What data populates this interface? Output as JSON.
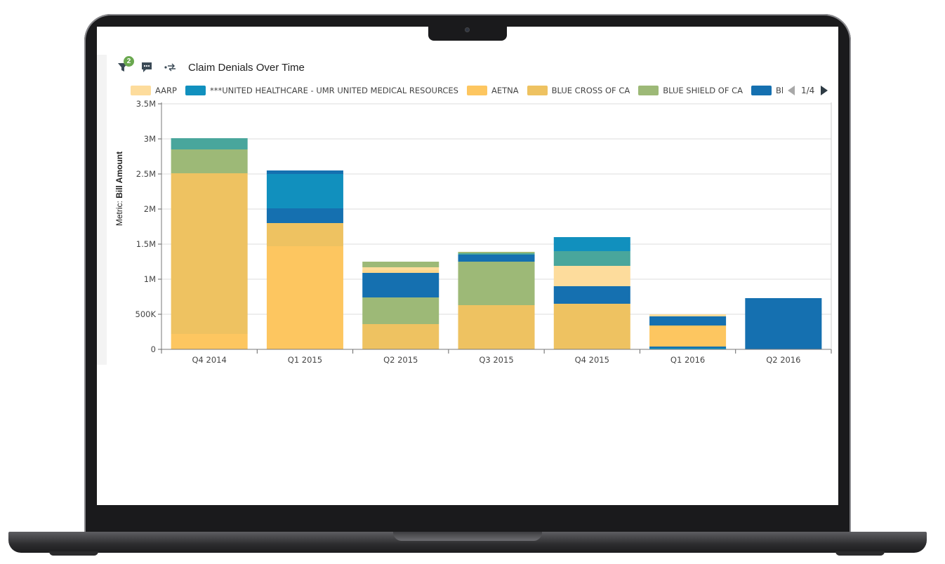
{
  "colors": {
    "aarp": "#fddc9c",
    "united_healthcare": "#1190be",
    "aetna": "#fdc660",
    "blue_cross": "#eec261",
    "blue_shield": "#9db977",
    "series6": "#1570b0",
    "teal": "#49a69c"
  },
  "toolbar": {
    "filter_count": "2",
    "icons": [
      "filter-icon",
      "comment-icon",
      "swap-icon"
    ]
  },
  "legend": {
    "items": [
      {
        "label": "AARP",
        "color": "#fddc9c"
      },
      {
        "label": "***UNITED HEALTHCARE - UMR UNITED MEDICAL RESOURCES",
        "color": "#1190be"
      },
      {
        "label": "AETNA",
        "color": "#fdc660"
      },
      {
        "label": "BLUE CROSS OF CA",
        "color": "#eec261"
      },
      {
        "label": "BLUE SHIELD OF CA",
        "color": "#9db977"
      },
      {
        "label": "Bl",
        "color": "#1570b0"
      }
    ],
    "page": "1/4"
  },
  "chart_data": {
    "type": "bar",
    "stacked": true,
    "title": "Claim Denials Over Time",
    "ylabel_prefix": "Metric:",
    "ylabel": "Bill Amount",
    "xlabel": "",
    "ylim": [
      0,
      3500000
    ],
    "y_ticks": [
      {
        "value": 0,
        "label": "0"
      },
      {
        "value": 500000,
        "label": "500K"
      },
      {
        "value": 1000000,
        "label": "1M"
      },
      {
        "value": 1500000,
        "label": "1.5M"
      },
      {
        "value": 2000000,
        "label": "2M"
      },
      {
        "value": 2500000,
        "label": "2.5M"
      },
      {
        "value": 3000000,
        "label": "3M"
      },
      {
        "value": 3500000,
        "label": "3.5M"
      }
    ],
    "grid": true,
    "legend_position": "top",
    "categories": [
      "Q4 2014",
      "Q1 2015",
      "Q2 2015",
      "Q3 2015",
      "Q4 2015",
      "Q1 2016",
      "Q2 2016"
    ],
    "stacks": [
      [
        {
          "color": "#fdc660",
          "value": 220000
        },
        {
          "color": "#eec261",
          "value": 2290000
        },
        {
          "color": "#9db977",
          "value": 340000
        },
        {
          "color": "#49a69c",
          "value": 160000
        }
      ],
      [
        {
          "color": "#fdc660",
          "value": 1470000
        },
        {
          "color": "#eec261",
          "value": 330000
        },
        {
          "color": "#1570b0",
          "value": 210000
        },
        {
          "color": "#1190be",
          "value": 490000
        },
        {
          "color": "#1570b0",
          "value": 50000
        }
      ],
      [
        {
          "color": "#eec261",
          "value": 360000
        },
        {
          "color": "#9db977",
          "value": 380000
        },
        {
          "color": "#1570b0",
          "value": 350000
        },
        {
          "color": "#fdd68a",
          "value": 40000
        },
        {
          "color": "#fddc9c",
          "value": 40000
        },
        {
          "color": "#9db977",
          "value": 80000
        }
      ],
      [
        {
          "color": "#eec261",
          "value": 630000
        },
        {
          "color": "#9db977",
          "value": 620000
        },
        {
          "color": "#1570b0",
          "value": 100000
        },
        {
          "color": "#49a69c",
          "value": 20000
        },
        {
          "color": "#9db977",
          "value": 20000
        }
      ],
      [
        {
          "color": "#eec261",
          "value": 650000
        },
        {
          "color": "#1570b0",
          "value": 250000
        },
        {
          "color": "#fddc9c",
          "value": 290000
        },
        {
          "color": "#49a69c",
          "value": 210000
        },
        {
          "color": "#1190be",
          "value": 200000
        }
      ],
      [
        {
          "color": "#1190be",
          "value": 20000
        },
        {
          "color": "#1570b0",
          "value": 20000
        },
        {
          "color": "#fdc660",
          "value": 280000
        },
        {
          "color": "#eec261",
          "value": 20000
        },
        {
          "color": "#1570b0",
          "value": 130000
        },
        {
          "color": "#fddc9c",
          "value": 30000
        }
      ],
      [
        {
          "color": "#1570b0",
          "value": 730000
        }
      ]
    ]
  }
}
